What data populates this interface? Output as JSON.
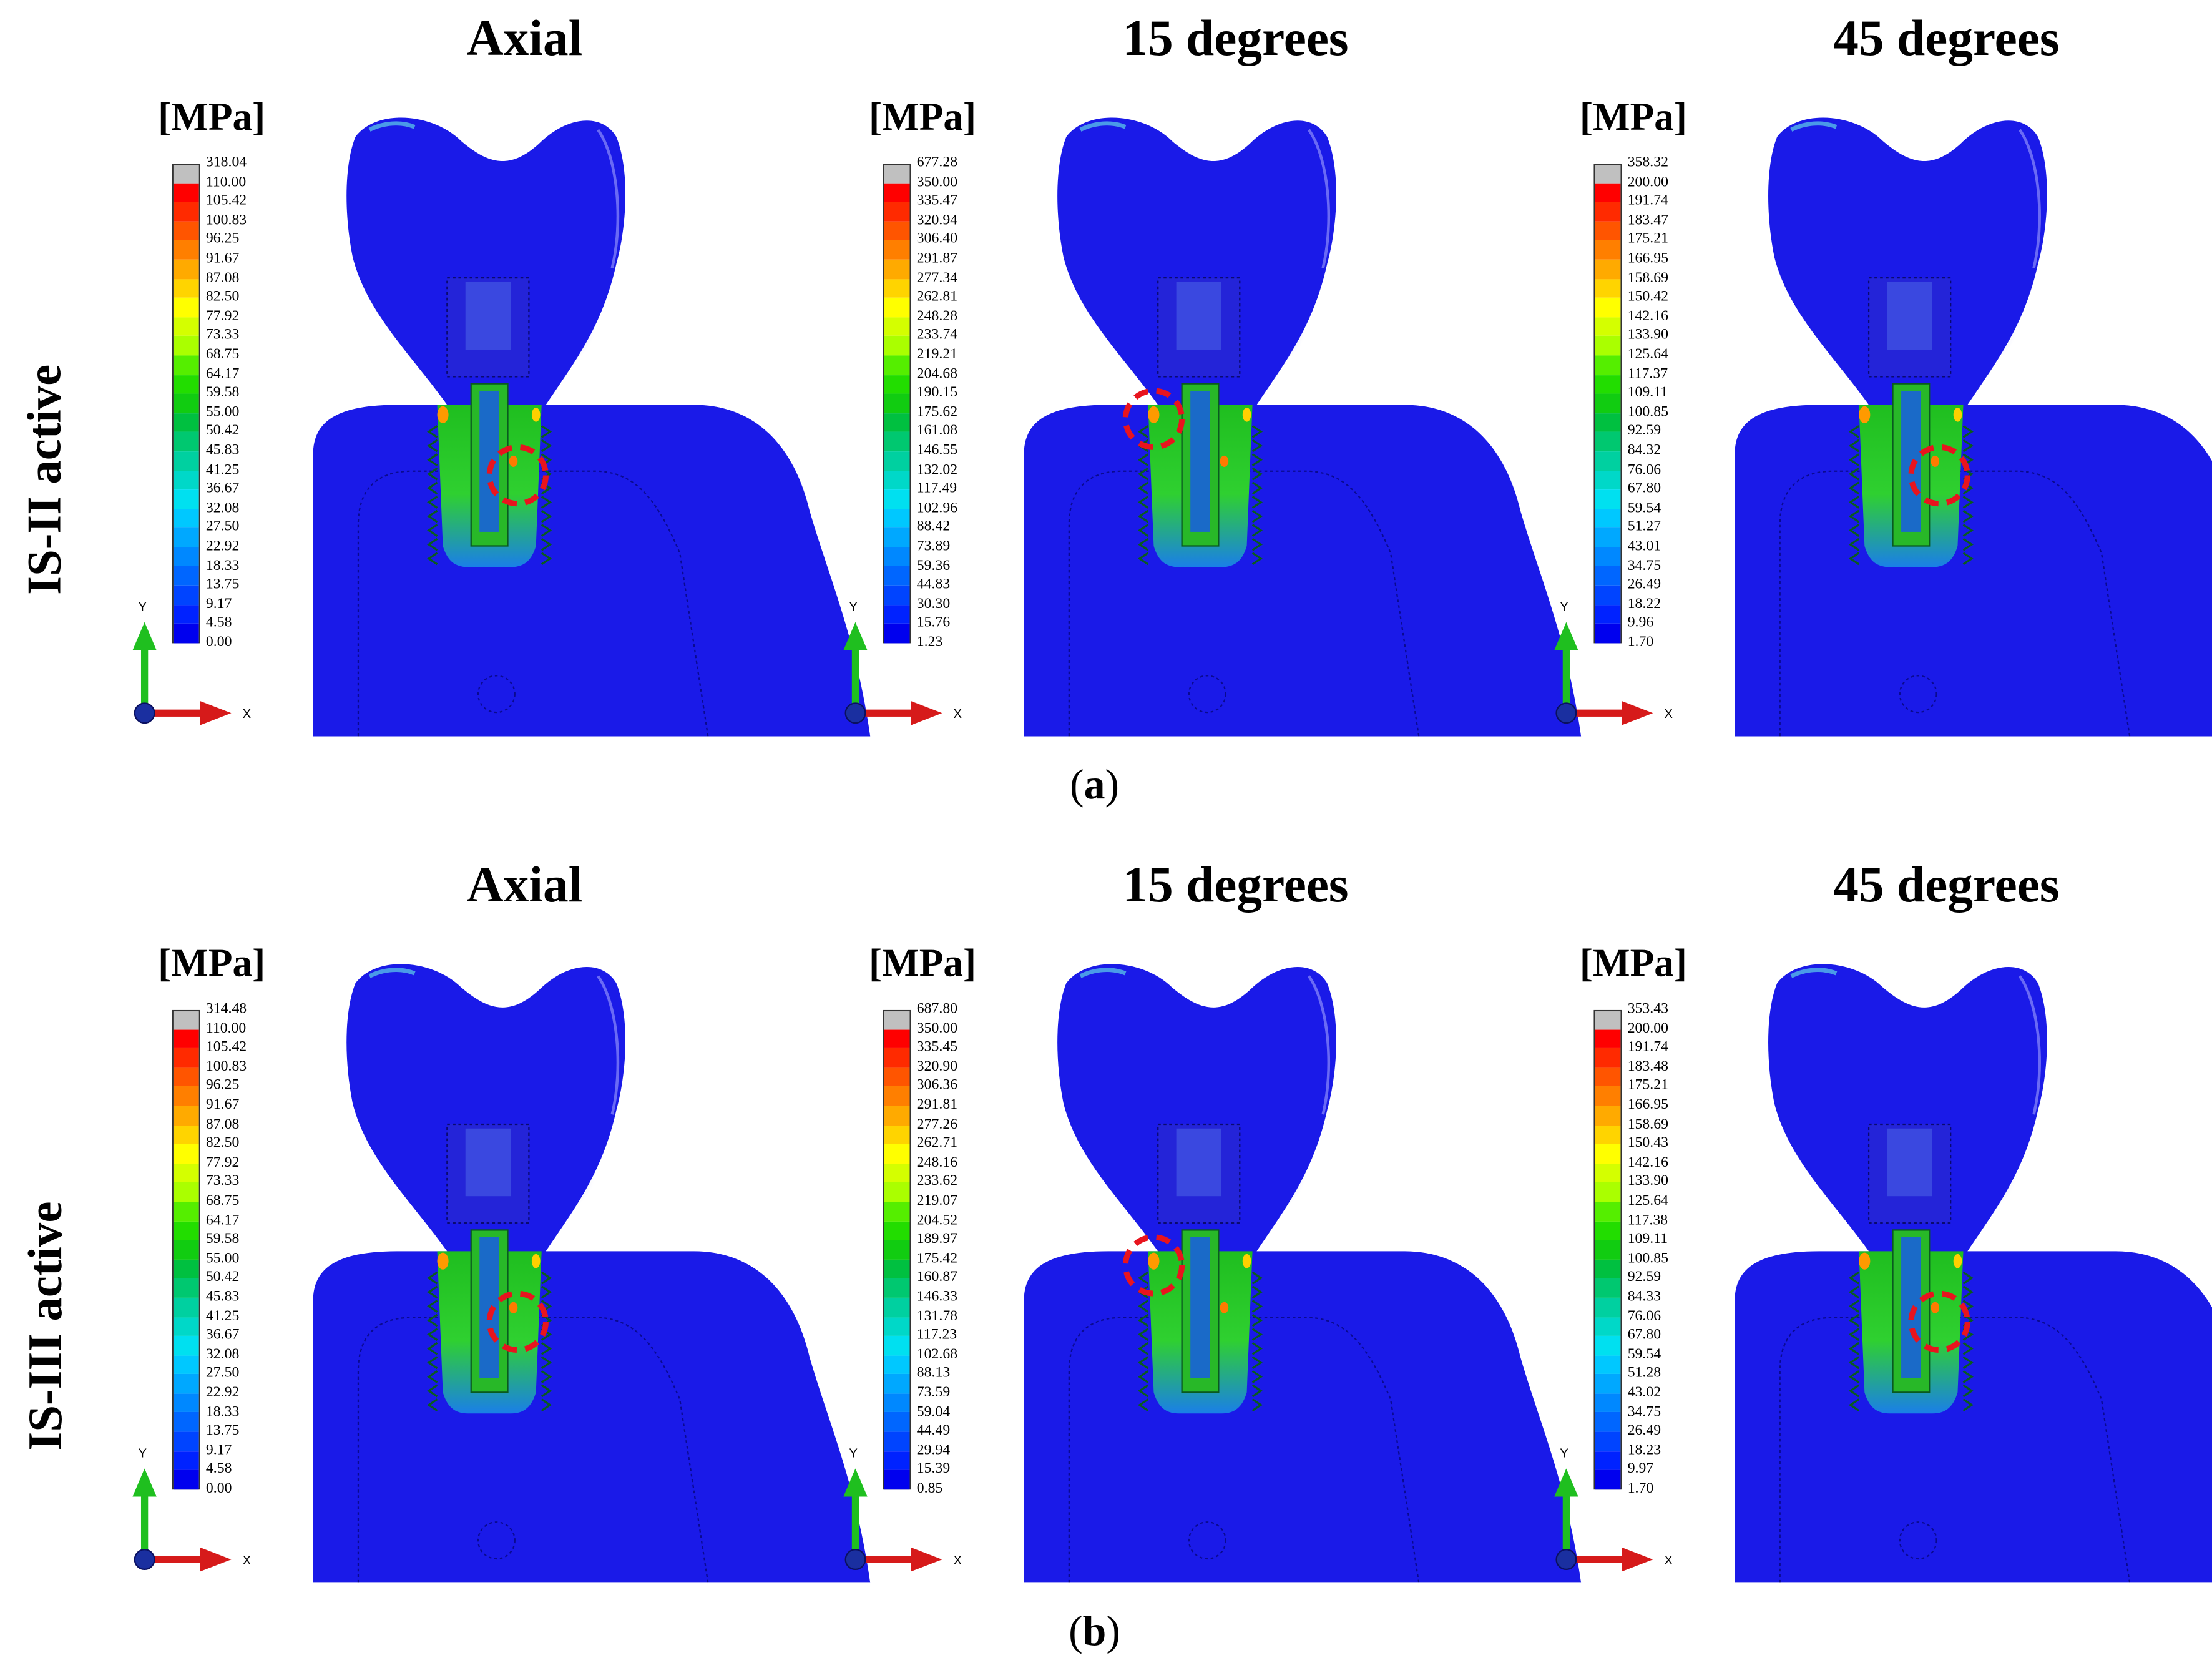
{
  "rows": [
    {
      "label": "IS-II active",
      "sublabel_open": "(",
      "sublabel_letter": "a",
      "sublabel_close": ")",
      "panels": [
        {
          "title": "Axial",
          "unit": "[MPa]",
          "ticks": [
            "318.04",
            "110.00",
            "105.42",
            "100.83",
            "96.25",
            "91.67",
            "87.08",
            "82.50",
            "77.92",
            "73.33",
            "68.75",
            "64.17",
            "59.58",
            "55.00",
            "50.42",
            "45.83",
            "41.25",
            "36.67",
            "32.08",
            "27.50",
            "22.92",
            "18.33",
            "13.75",
            "9.17",
            "4.58",
            "0.00"
          ],
          "axis_y": "Y",
          "axis_x": "X"
        },
        {
          "title": "15 degrees",
          "unit": "[MPa]",
          "ticks": [
            "677.28",
            "350.00",
            "335.47",
            "320.94",
            "306.40",
            "291.87",
            "277.34",
            "262.81",
            "248.28",
            "233.74",
            "219.21",
            "204.68",
            "190.15",
            "175.62",
            "161.08",
            "146.55",
            "132.02",
            "117.49",
            "102.96",
            "88.42",
            "73.89",
            "59.36",
            "44.83",
            "30.30",
            "15.76",
            "1.23"
          ],
          "axis_y": "Y",
          "axis_x": "X"
        },
        {
          "title": "45 degrees",
          "unit": "[MPa]",
          "ticks": [
            "358.32",
            "200.00",
            "191.74",
            "183.47",
            "175.21",
            "166.95",
            "158.69",
            "150.42",
            "142.16",
            "133.90",
            "125.64",
            "117.37",
            "109.11",
            "100.85",
            "92.59",
            "84.32",
            "76.06",
            "67.80",
            "59.54",
            "51.27",
            "43.01",
            "34.75",
            "26.49",
            "18.22",
            "9.96",
            "1.70"
          ],
          "axis_y": "Y",
          "axis_x": "X"
        }
      ]
    },
    {
      "label": "IS-III active",
      "sublabel_open": "(",
      "sublabel_letter": "b",
      "sublabel_close": ")",
      "panels": [
        {
          "title": "Axial",
          "unit": "[MPa]",
          "ticks": [
            "314.48",
            "110.00",
            "105.42",
            "100.83",
            "96.25",
            "91.67",
            "87.08",
            "82.50",
            "77.92",
            "73.33",
            "68.75",
            "64.17",
            "59.58",
            "55.00",
            "50.42",
            "45.83",
            "41.25",
            "36.67",
            "32.08",
            "27.50",
            "22.92",
            "18.33",
            "13.75",
            "9.17",
            "4.58",
            "0.00"
          ],
          "axis_y": "Y",
          "axis_x": "X"
        },
        {
          "title": "15 degrees",
          "unit": "[MPa]",
          "ticks": [
            "687.80",
            "350.00",
            "335.45",
            "320.90",
            "306.36",
            "291.81",
            "277.26",
            "262.71",
            "248.16",
            "233.62",
            "219.07",
            "204.52",
            "189.97",
            "175.42",
            "160.87",
            "146.33",
            "131.78",
            "117.23",
            "102.68",
            "88.13",
            "73.59",
            "59.04",
            "44.49",
            "29.94",
            "15.39",
            "0.85"
          ],
          "axis_y": "Y",
          "axis_x": "X"
        },
        {
          "title": "45 degrees",
          "unit": "[MPa]",
          "ticks": [
            "353.43",
            "200.00",
            "191.74",
            "183.48",
            "175.21",
            "166.95",
            "158.69",
            "150.43",
            "142.16",
            "133.90",
            "125.64",
            "117.38",
            "109.11",
            "100.85",
            "92.59",
            "84.33",
            "76.06",
            "67.80",
            "59.54",
            "51.28",
            "43.02",
            "34.75",
            "26.49",
            "18.23",
            "9.97",
            "1.70"
          ],
          "axis_y": "Y",
          "axis_x": "X"
        }
      ]
    }
  ],
  "colors": {
    "bone": "#1a1ae8",
    "over_limit": "#c0c0c0",
    "highlight_circle": "#e8141e",
    "axis_x_arrow": "#d61a1a",
    "axis_y_arrow": "#1fbf1f",
    "axis_origin": "#1a2fa0",
    "legend_scale": [
      "#ff0000",
      "#ff2a00",
      "#ff5500",
      "#ff7f00",
      "#ffaa00",
      "#ffd400",
      "#ffff00",
      "#d4ff00",
      "#aaff00",
      "#55ee00",
      "#22dd00",
      "#11cc11",
      "#00c040",
      "#00c870",
      "#00d0a0",
      "#00d8c8",
      "#00e0f0",
      "#00c8ff",
      "#00a8ff",
      "#0088ff",
      "#0066ff",
      "#0044ff",
      "#0022ff",
      "#0000ee"
    ]
  },
  "highlight_positions": [
    "implant-right-mid",
    "neck-left",
    "implant-right-mid"
  ]
}
